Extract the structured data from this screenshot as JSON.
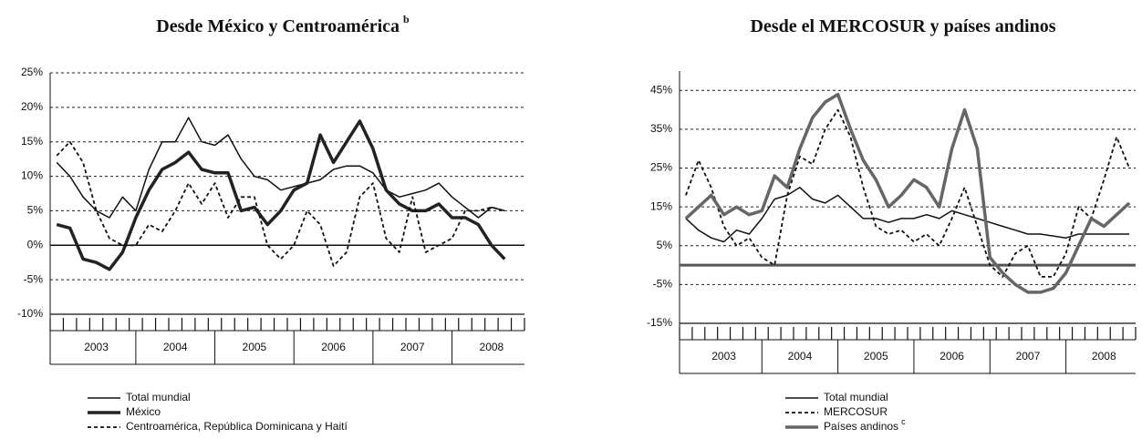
{
  "chart_data": [
    {
      "type": "line",
      "title": "Desde México y Centroamérica",
      "title_note": "b",
      "categories": [
        null,
        null,
        null,
        "2003",
        null,
        null,
        null,
        null,
        null,
        "2004",
        null,
        null,
        null,
        null,
        null,
        "2005",
        null,
        null,
        null,
        null,
        null,
        "2006",
        null,
        null,
        null,
        null,
        null,
        "2007",
        null,
        null,
        null,
        null,
        null,
        "2008",
        null,
        null
      ],
      "ylim": [
        -10,
        25
      ],
      "yticks": [
        {
          "value": -10,
          "label": "-10%"
        },
        {
          "value": -5,
          "label": "-5%"
        },
        {
          "value": 0,
          "label": "0%"
        },
        {
          "value": 5,
          "label": "5%"
        },
        {
          "value": 10,
          "label": "10%"
        },
        {
          "value": 15,
          "label": "15%"
        },
        {
          "value": 20,
          "label": "20%"
        },
        {
          "value": 25,
          "label": "25%"
        }
      ],
      "grid": true,
      "series": [
        {
          "name": "Total mundial",
          "color": "#111111",
          "style": "solid",
          "values": [
            12,
            10,
            7,
            5,
            4,
            7,
            5,
            11,
            15,
            15,
            18.5,
            15,
            14.5,
            16,
            12.5,
            10,
            9.5,
            8,
            8.5,
            9,
            9.5,
            11,
            11.5,
            11.5,
            10.5,
            8,
            7,
            7.5,
            8,
            9,
            7,
            5.5,
            4,
            5.5,
            5,
            null
          ]
        },
        {
          "name": "México",
          "color": "#222222",
          "style": "thick",
          "values": [
            3,
            2.5,
            -2,
            -2.5,
            -3.5,
            -1,
            4,
            8,
            11,
            12,
            13.5,
            11,
            10.5,
            10.5,
            5,
            5.5,
            3,
            5,
            8,
            9,
            16,
            12,
            15,
            18,
            14,
            8,
            6,
            5,
            5,
            6,
            4,
            4,
            3,
            0,
            -2,
            null
          ]
        },
        {
          "name": "Centroamérica, República Dominicana y Haití",
          "color": "#111111",
          "style": "dashed",
          "values": [
            13,
            15,
            12,
            5,
            1,
            0,
            0,
            3,
            2,
            5,
            9,
            6,
            9,
            4,
            7,
            7,
            0,
            -2,
            0,
            5,
            3,
            -3,
            -1,
            7,
            9,
            1,
            -1,
            7,
            -1,
            0,
            1,
            5,
            5,
            5.5,
            5,
            null
          ]
        }
      ]
    },
    {
      "type": "line",
      "title": "Desde el MERCOSUR y países andinos",
      "categories": [
        null,
        null,
        null,
        "2003",
        null,
        null,
        null,
        null,
        null,
        "2004",
        null,
        null,
        null,
        null,
        null,
        "2005",
        null,
        null,
        null,
        null,
        null,
        "2006",
        null,
        null,
        null,
        null,
        null,
        "2007",
        null,
        null,
        null,
        null,
        null,
        "2008",
        null,
        null
      ],
      "ylim": [
        -15,
        50
      ],
      "yticks": [
        {
          "value": -15,
          "label": "-15%"
        },
        {
          "value": -5,
          "label": "-5%"
        },
        {
          "value": 5,
          "label": "5%"
        },
        {
          "value": 15,
          "label": "15%"
        },
        {
          "value": 25,
          "label": "25%"
        },
        {
          "value": 35,
          "label": "35%"
        },
        {
          "value": 45,
          "label": "45%"
        }
      ],
      "grid": true,
      "series": [
        {
          "name": "Total mundial",
          "color": "#111111",
          "style": "solid",
          "values": [
            12,
            9,
            7,
            6,
            9,
            8,
            12,
            17,
            18,
            20,
            17,
            16,
            18,
            15,
            12,
            12,
            11,
            12,
            12,
            13,
            12,
            14,
            13,
            12,
            11,
            10,
            9,
            8,
            8,
            7.5,
            7,
            8,
            8,
            8,
            8,
            8
          ]
        },
        {
          "name": "MERCOSUR",
          "color": "#111111",
          "style": "dashed",
          "values": [
            18,
            27,
            20,
            10,
            5,
            7,
            2,
            0,
            18,
            28,
            26,
            35,
            40,
            33,
            20,
            10,
            8,
            9,
            6,
            8,
            5,
            12,
            20,
            10,
            0,
            -3,
            3,
            5,
            -3,
            -3,
            3,
            15,
            12,
            22,
            33,
            25
          ]
        },
        {
          "name": "Países andinos",
          "note": "c",
          "color": "#666666",
          "style": "thick",
          "values": [
            12,
            15,
            18,
            13,
            15,
            13,
            14,
            23,
            20,
            30,
            38,
            42,
            44,
            35,
            27,
            22,
            15,
            18,
            22,
            20,
            15,
            30,
            40,
            30,
            2,
            -2,
            -5,
            -7,
            -7,
            -6,
            -2,
            5,
            12,
            10,
            13,
            16
          ]
        }
      ]
    }
  ]
}
